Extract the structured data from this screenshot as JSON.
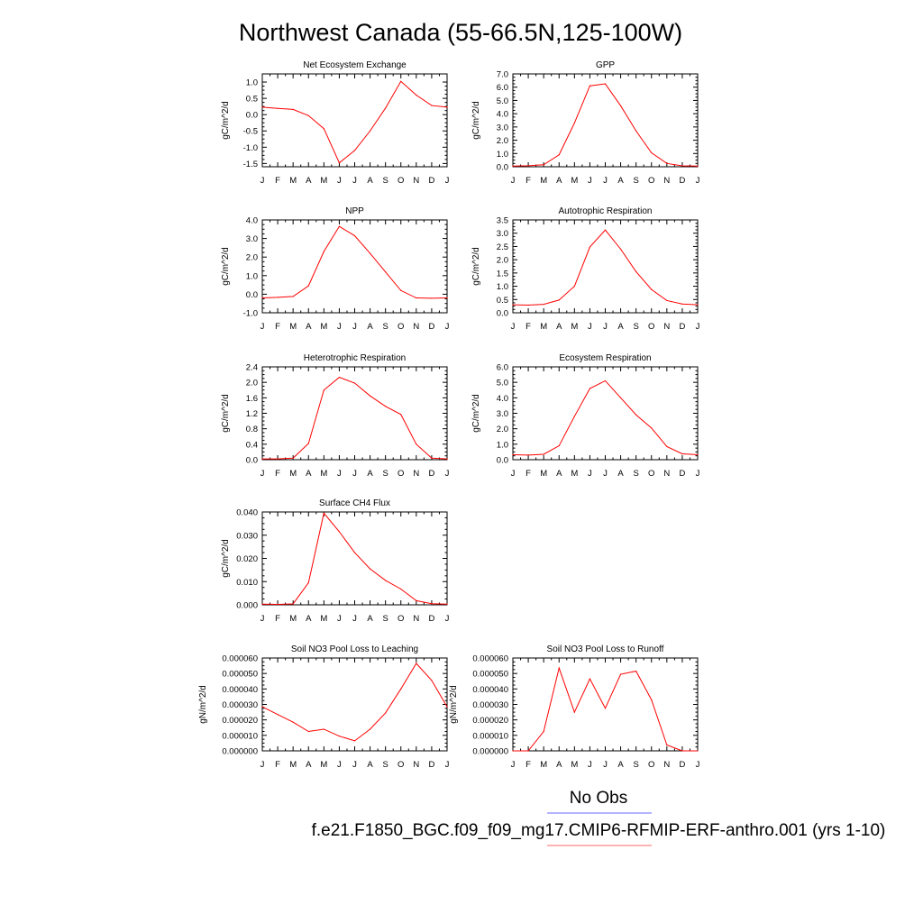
{
  "title": "Northwest Canada (55-66.5N,125-100W)",
  "months": [
    "J",
    "F",
    "M",
    "A",
    "M",
    "J",
    "J",
    "A",
    "S",
    "O",
    "N",
    "D",
    "J"
  ],
  "legend": {
    "obs_label": "No Obs",
    "obs_color": "#8888ff",
    "case_label": "f.e21.F1850_BGC.f09_f09_mg17.CMIP6-RFMIP-ERF-anthro.001 (yrs 1-10)",
    "case_color": "#ff8888"
  },
  "line_color": "#ff0000",
  "chart_data": [
    {
      "type": "line",
      "title": "Net Ecosystem Exchange",
      "ylabel": "gC/m^2/d",
      "ylim": [
        -1.6,
        1.25
      ],
      "yticks": [
        1.0,
        0.5,
        0.0,
        -0.5,
        -1.0,
        -1.5
      ],
      "yticklabels": [
        "1.0",
        "0.5",
        "0.0",
        "-0.5",
        "-1.0",
        "-1.5"
      ],
      "series": [
        {
          "values": [
            0.23,
            0.19,
            0.16,
            -0.03,
            -0.43,
            -1.48,
            -1.1,
            -0.5,
            0.2,
            1.02,
            0.6,
            0.28,
            0.23
          ]
        }
      ]
    },
    {
      "type": "line",
      "title": "GPP",
      "ylabel": "gC/m^2/d",
      "ylim": [
        0,
        7.0
      ],
      "yticks": [
        7,
        6,
        5,
        4,
        3,
        2,
        1,
        0
      ],
      "yticklabels": [
        "7.0",
        "6.0",
        "5.0",
        "4.0",
        "3.0",
        "2.0",
        "1.0",
        "0.0"
      ],
      "series": [
        {
          "values": [
            0.05,
            0.08,
            0.15,
            0.9,
            3.3,
            6.1,
            6.25,
            4.6,
            2.7,
            1.05,
            0.25,
            0.07,
            0.05
          ]
        }
      ]
    },
    {
      "type": "line",
      "title": "NPP",
      "ylabel": "gC/m^2/d",
      "ylim": [
        -1.0,
        4.0
      ],
      "yticks": [
        4,
        3,
        2,
        1,
        0,
        -1
      ],
      "yticklabels": [
        "4.0",
        "3.0",
        "2.0",
        "1.0",
        "0.0",
        "-1.0"
      ],
      "series": [
        {
          "values": [
            -0.2,
            -0.17,
            -0.12,
            0.45,
            2.3,
            3.65,
            3.15,
            2.2,
            1.2,
            0.2,
            -0.2,
            -0.22,
            -0.2
          ]
        }
      ]
    },
    {
      "type": "line",
      "title": "Autotrophic Respiration",
      "ylabel": "gC/m^2/d",
      "ylim": [
        0,
        3.5
      ],
      "yticks": [
        3.5,
        3.0,
        2.5,
        2.0,
        1.5,
        1.0,
        0.5,
        0.0
      ],
      "yticklabels": [
        "3.5",
        "3.0",
        "2.5",
        "2.0",
        "1.5",
        "1.0",
        "0.5",
        "0.0"
      ],
      "series": [
        {
          "values": [
            0.3,
            0.29,
            0.32,
            0.48,
            1.0,
            2.48,
            3.12,
            2.4,
            1.55,
            0.88,
            0.46,
            0.33,
            0.3
          ]
        }
      ]
    },
    {
      "type": "line",
      "title": "Heterotrophic Respiration",
      "ylabel": "gC/m^2/d",
      "ylim": [
        0,
        2.4
      ],
      "yticks": [
        2.4,
        2.0,
        1.6,
        1.2,
        0.8,
        0.4,
        0.0
      ],
      "yticklabels": [
        "2.4",
        "2.0",
        "1.6",
        "1.2",
        "0.8",
        "0.4",
        "0.0"
      ],
      "series": [
        {
          "values": [
            0.02,
            0.02,
            0.04,
            0.42,
            1.8,
            2.13,
            1.98,
            1.65,
            1.38,
            1.17,
            0.4,
            0.04,
            0.02
          ]
        }
      ]
    },
    {
      "type": "line",
      "title": "Ecosystem Respiration",
      "ylabel": "gC/m^2/d",
      "ylim": [
        0,
        6.0
      ],
      "yticks": [
        6,
        5,
        4,
        3,
        2,
        1,
        0
      ],
      "yticklabels": [
        "6.0",
        "5.0",
        "4.0",
        "3.0",
        "2.0",
        "1.0",
        "0.0"
      ],
      "series": [
        {
          "values": [
            0.32,
            0.3,
            0.35,
            0.9,
            2.8,
            4.6,
            5.1,
            4.0,
            2.9,
            2.05,
            0.85,
            0.38,
            0.32
          ]
        }
      ]
    },
    {
      "type": "line",
      "title": "Surface CH4 Flux",
      "ylabel": "gC/m^2/d",
      "ylim": [
        0,
        0.04
      ],
      "yticks": [
        0.04,
        0.03,
        0.02,
        0.01,
        0.0
      ],
      "yticklabels": [
        "0.040",
        "0.030",
        "0.020",
        "0.010",
        "0.000"
      ],
      "series": [
        {
          "values": [
            0.0003,
            0.0002,
            0.0004,
            0.0095,
            0.0395,
            0.0315,
            0.0225,
            0.0155,
            0.0105,
            0.0068,
            0.0018,
            0.0005,
            0.0003
          ]
        }
      ]
    },
    {
      "type": "line",
      "title": "Soil NO3 Pool Loss to Leaching",
      "ylabel": "gN/m^2/d",
      "ylim": [
        0,
        6e-05
      ],
      "yticks": [
        6e-05,
        5e-05,
        4e-05,
        3e-05,
        2e-05,
        1e-05,
        0
      ],
      "yticklabels": [
        "0.000060",
        "0.000050",
        "0.000040",
        "0.000030",
        "0.000020",
        "0.000010",
        "0.000000"
      ],
      "series": [
        {
          "values": [
            2.85e-05,
            2.35e-05,
            1.85e-05,
            1.25e-05,
            1.4e-05,
            9.5e-06,
            6.5e-06,
            1.4e-05,
            2.45e-05,
            4e-05,
            5.65e-05,
            4.55e-05,
            2.85e-05
          ]
        }
      ]
    },
    {
      "type": "line",
      "title": "Soil NO3 Pool Loss to Runoff",
      "ylabel": "gN/m^2/d",
      "ylim": [
        0,
        6e-05
      ],
      "yticks": [
        6e-05,
        5e-05,
        4e-05,
        3e-05,
        2e-05,
        1e-05,
        0
      ],
      "yticklabels": [
        "0.000060",
        "0.000050",
        "0.000040",
        "0.000030",
        "0.000020",
        "0.000010",
        "0.000000"
      ],
      "series": [
        {
          "values": [
            0.0,
            0.0,
            1.25e-05,
            5.35e-05,
            2.5e-05,
            4.65e-05,
            2.75e-05,
            4.95e-05,
            5.15e-05,
            3.3e-05,
            3.8e-06,
            0.0,
            0.0
          ]
        }
      ]
    }
  ]
}
